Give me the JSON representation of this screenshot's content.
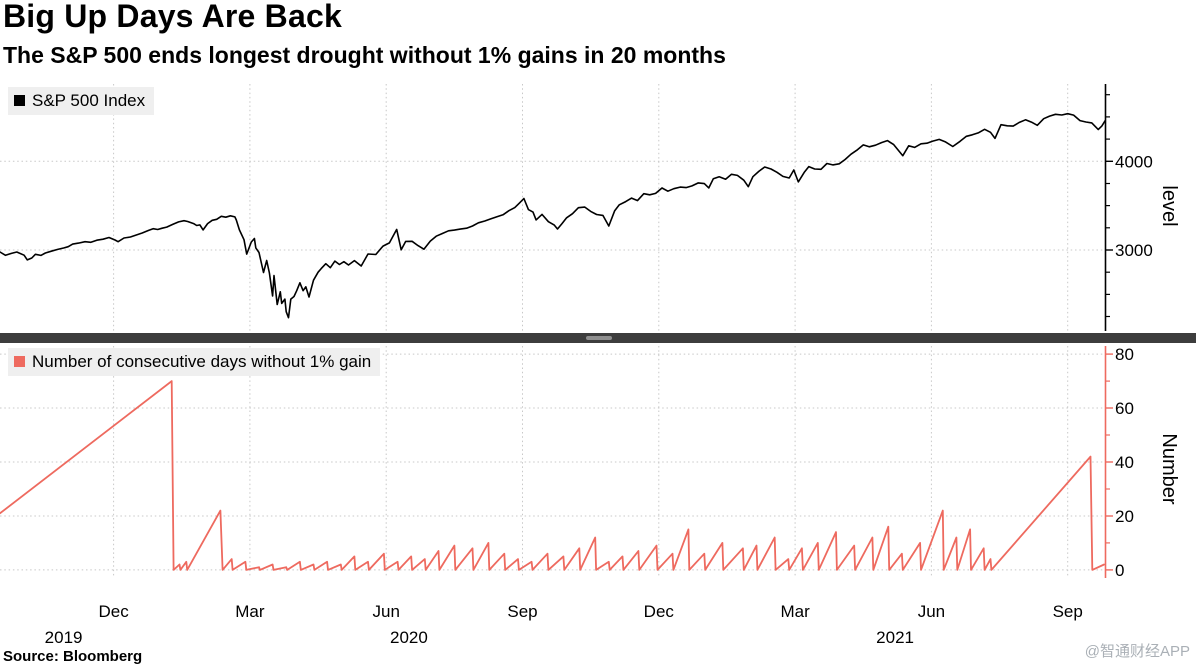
{
  "header": {
    "title": "Big Up Days Are Back",
    "subtitle": "The S&P 500 ends longest drought without 1% gains in 20 months"
  },
  "footer": {
    "source": "Source: Bloomberg",
    "watermark": "@智通财经APP"
  },
  "x_axis": {
    "unit": "months since 2019-10-01",
    "xlim": [
      -0.5,
      23.82
    ],
    "ticks": [
      {
        "x": 2,
        "label": "Dec"
      },
      {
        "x": 5,
        "label": "Mar"
      },
      {
        "x": 8,
        "label": "Jun"
      },
      {
        "x": 11,
        "label": "Sep"
      },
      {
        "x": 14,
        "label": "Dec"
      },
      {
        "x": 17,
        "label": "Mar"
      },
      {
        "x": 20,
        "label": "Jun"
      },
      {
        "x": 23,
        "label": "Sep"
      }
    ],
    "year_labels": [
      {
        "x": 0.9,
        "label": "2019"
      },
      {
        "x": 8.5,
        "label": "2020"
      },
      {
        "x": 19.2,
        "label": "2021"
      }
    ]
  },
  "chart_data": [
    {
      "type": "line",
      "name": "S&P 500 Index",
      "ylabel": "level",
      "ylim": [
        2087,
        4871
      ],
      "yticks": [
        {
          "v": 3000,
          "label": "3000"
        },
        {
          "v": 4000,
          "label": "4000"
        }
      ],
      "minor_yticks": [
        2250,
        2500,
        2750,
        3250,
        3500,
        3750,
        4250,
        4500,
        4750
      ],
      "color": "#000000",
      "axis_color": "#000000",
      "grid": true,
      "legend_position": "top-left",
      "points": [
        [
          -0.5,
          2977
        ],
        [
          -0.38,
          2940
        ],
        [
          -0.25,
          2962
        ],
        [
          -0.13,
          2977
        ],
        [
          0.03,
          2941
        ],
        [
          0.1,
          2888
        ],
        [
          0.2,
          2910
        ],
        [
          0.28,
          2952
        ],
        [
          0.4,
          2939
        ],
        [
          0.5,
          2966
        ],
        [
          0.63,
          2986
        ],
        [
          0.77,
          3007
        ],
        [
          0.9,
          3023
        ],
        [
          1.0,
          3037
        ],
        [
          1.1,
          3067
        ],
        [
          1.23,
          3078
        ],
        [
          1.37,
          3094
        ],
        [
          1.5,
          3087
        ],
        [
          1.63,
          3110
        ],
        [
          1.77,
          3122
        ],
        [
          1.9,
          3141
        ],
        [
          2.03,
          3113
        ],
        [
          2.1,
          3093
        ],
        [
          2.23,
          3135
        ],
        [
          2.37,
          3146
        ],
        [
          2.5,
          3169
        ],
        [
          2.63,
          3192
        ],
        [
          2.77,
          3221
        ],
        [
          2.87,
          3240
        ],
        [
          2.97,
          3231
        ],
        [
          3.07,
          3246
        ],
        [
          3.17,
          3258
        ],
        [
          3.3,
          3289
        ],
        [
          3.43,
          3317
        ],
        [
          3.55,
          3330
        ],
        [
          3.63,
          3321
        ],
        [
          3.77,
          3295
        ],
        [
          3.83,
          3276
        ],
        [
          3.9,
          3283
        ],
        [
          3.97,
          3226
        ],
        [
          4.07,
          3298
        ],
        [
          4.17,
          3335
        ],
        [
          4.27,
          3346
        ],
        [
          4.37,
          3380
        ],
        [
          4.47,
          3370
        ],
        [
          4.57,
          3386
        ],
        [
          4.67,
          3373
        ],
        [
          4.7,
          3338
        ],
        [
          4.77,
          3226
        ],
        [
          4.87,
          3116
        ],
        [
          4.93,
          2954
        ],
        [
          5.03,
          3090
        ],
        [
          5.1,
          3130
        ],
        [
          5.13,
          3024
        ],
        [
          5.2,
          2972
        ],
        [
          5.3,
          2746
        ],
        [
          5.37,
          2882
        ],
        [
          5.43,
          2741
        ],
        [
          5.5,
          2481
        ],
        [
          5.53,
          2711
        ],
        [
          5.6,
          2386
        ],
        [
          5.67,
          2529
        ],
        [
          5.7,
          2398
        ],
        [
          5.77,
          2447
        ],
        [
          5.8,
          2305
        ],
        [
          5.85,
          2237
        ],
        [
          5.9,
          2447
        ],
        [
          5.97,
          2476
        ],
        [
          6.03,
          2541
        ],
        [
          6.1,
          2630
        ],
        [
          6.17,
          2541
        ],
        [
          6.23,
          2585
        ],
        [
          6.3,
          2470
        ],
        [
          6.4,
          2660
        ],
        [
          6.5,
          2750
        ],
        [
          6.57,
          2790
        ],
        [
          6.67,
          2846
        ],
        [
          6.77,
          2800
        ],
        [
          6.87,
          2875
        ],
        [
          6.97,
          2837
        ],
        [
          7.07,
          2868
        ],
        [
          7.17,
          2831
        ],
        [
          7.3,
          2881
        ],
        [
          7.45,
          2820
        ],
        [
          7.6,
          2955
        ],
        [
          7.77,
          2949
        ],
        [
          7.93,
          3044
        ],
        [
          8.07,
          3080
        ],
        [
          8.23,
          3232
        ],
        [
          8.33,
          3002
        ],
        [
          8.43,
          3097
        ],
        [
          8.57,
          3098
        ],
        [
          8.7,
          3050
        ],
        [
          8.83,
          3009
        ],
        [
          8.97,
          3100
        ],
        [
          9.1,
          3156
        ],
        [
          9.23,
          3185
        ],
        [
          9.37,
          3216
        ],
        [
          9.5,
          3224
        ],
        [
          9.63,
          3235
        ],
        [
          9.77,
          3246
        ],
        [
          9.9,
          3271
        ],
        [
          10.03,
          3306
        ],
        [
          10.17,
          3327
        ],
        [
          10.3,
          3351
        ],
        [
          10.43,
          3373
        ],
        [
          10.57,
          3397
        ],
        [
          10.7,
          3443
        ],
        [
          10.83,
          3478
        ],
        [
          10.93,
          3527
        ],
        [
          11.03,
          3581
        ],
        [
          11.13,
          3455
        ],
        [
          11.23,
          3427
        ],
        [
          11.3,
          3339
        ],
        [
          11.43,
          3401
        ],
        [
          11.57,
          3319
        ],
        [
          11.7,
          3281
        ],
        [
          11.77,
          3237
        ],
        [
          11.87,
          3298
        ],
        [
          11.97,
          3363
        ],
        [
          12.1,
          3409
        ],
        [
          12.23,
          3477
        ],
        [
          12.37,
          3483
        ],
        [
          12.5,
          3435
        ],
        [
          12.63,
          3400
        ],
        [
          12.77,
          3390
        ],
        [
          12.9,
          3271
        ],
        [
          13.03,
          3443
        ],
        [
          13.13,
          3509
        ],
        [
          13.27,
          3545
        ],
        [
          13.4,
          3585
        ],
        [
          13.53,
          3557
        ],
        [
          13.67,
          3635
        ],
        [
          13.8,
          3622
        ],
        [
          13.93,
          3638
        ],
        [
          14.07,
          3699
        ],
        [
          14.2,
          3663
        ],
        [
          14.33,
          3691
        ],
        [
          14.47,
          3709
        ],
        [
          14.6,
          3703
        ],
        [
          14.73,
          3722
        ],
        [
          14.87,
          3756
        ],
        [
          15.0,
          3748
        ],
        [
          15.1,
          3700
        ],
        [
          15.2,
          3803
        ],
        [
          15.33,
          3825
        ],
        [
          15.47,
          3798
        ],
        [
          15.6,
          3853
        ],
        [
          15.73,
          3841
        ],
        [
          15.87,
          3787
        ],
        [
          15.97,
          3714
        ],
        [
          16.07,
          3826
        ],
        [
          16.2,
          3886
        ],
        [
          16.33,
          3935
        ],
        [
          16.47,
          3913
        ],
        [
          16.6,
          3876
        ],
        [
          16.73,
          3829
        ],
        [
          16.87,
          3811
        ],
        [
          16.97,
          3902
        ],
        [
          17.07,
          3768
        ],
        [
          17.2,
          3875
        ],
        [
          17.3,
          3940
        ],
        [
          17.43,
          3913
        ],
        [
          17.57,
          3910
        ],
        [
          17.7,
          3975
        ],
        [
          17.83,
          3959
        ],
        [
          17.97,
          3972
        ],
        [
          18.1,
          4020
        ],
        [
          18.23,
          4080
        ],
        [
          18.37,
          4129
        ],
        [
          18.5,
          4185
        ],
        [
          18.63,
          4163
        ],
        [
          18.77,
          4181
        ],
        [
          18.9,
          4211
        ],
        [
          19.03,
          4233
        ],
        [
          19.17,
          4188
        ],
        [
          19.37,
          4063
        ],
        [
          19.5,
          4174
        ],
        [
          19.63,
          4156
        ],
        [
          19.77,
          4197
        ],
        [
          19.9,
          4204
        ],
        [
          20.03,
          4227
        ],
        [
          20.17,
          4247
        ],
        [
          20.3,
          4221
        ],
        [
          20.47,
          4166
        ],
        [
          20.63,
          4225
        ],
        [
          20.77,
          4281
        ],
        [
          20.9,
          4298
        ],
        [
          21.03,
          4320
        ],
        [
          21.17,
          4360
        ],
        [
          21.3,
          4327
        ],
        [
          21.4,
          4258
        ],
        [
          21.53,
          4412
        ],
        [
          21.67,
          4400
        ],
        [
          21.8,
          4396
        ],
        [
          21.93,
          4437
        ],
        [
          22.07,
          4468
        ],
        [
          22.2,
          4442
        ],
        [
          22.33,
          4406
        ],
        [
          22.47,
          4480
        ],
        [
          22.6,
          4509
        ],
        [
          22.73,
          4529
        ],
        [
          22.87,
          4522
        ],
        [
          23.0,
          4536
        ],
        [
          23.13,
          4520
        ],
        [
          23.27,
          4458
        ],
        [
          23.4,
          4443
        ],
        [
          23.53,
          4433
        ],
        [
          23.67,
          4358
        ],
        [
          23.75,
          4396
        ],
        [
          23.82,
          4455
        ]
      ]
    },
    {
      "type": "line",
      "name": "Number of consecutive days without 1% gain",
      "ylabel": "Number",
      "ylim": [
        -3,
        83
      ],
      "yticks": [
        {
          "v": 0,
          "label": "0"
        },
        {
          "v": 20,
          "label": "20"
        },
        {
          "v": 40,
          "label": "40"
        },
        {
          "v": 60,
          "label": "60"
        },
        {
          "v": 80,
          "label": "80"
        }
      ],
      "minor_yticks": [
        10,
        30,
        50,
        70
      ],
      "color": "#ee6a5f",
      "axis_color": "#ee6a5f",
      "grid": true,
      "legend_position": "top-left",
      "points": [
        [
          -0.5,
          21
        ],
        [
          3.28,
          70
        ],
        [
          3.32,
          0
        ],
        [
          3.45,
          2
        ],
        [
          3.47,
          0
        ],
        [
          3.6,
          3
        ],
        [
          3.62,
          0
        ],
        [
          4.35,
          22
        ],
        [
          4.4,
          0
        ],
        [
          4.6,
          4
        ],
        [
          4.62,
          0
        ],
        [
          4.9,
          3
        ],
        [
          4.92,
          0
        ],
        [
          5.2,
          1
        ],
        [
          5.22,
          0
        ],
        [
          5.5,
          2
        ],
        [
          5.52,
          0
        ],
        [
          5.8,
          1
        ],
        [
          5.82,
          0
        ],
        [
          6.1,
          3
        ],
        [
          6.12,
          0
        ],
        [
          6.4,
          2
        ],
        [
          6.42,
          0
        ],
        [
          6.7,
          3
        ],
        [
          6.72,
          0
        ],
        [
          7.0,
          2
        ],
        [
          7.02,
          0
        ],
        [
          7.3,
          5
        ],
        [
          7.32,
          0
        ],
        [
          7.6,
          3
        ],
        [
          7.62,
          0
        ],
        [
          7.95,
          6
        ],
        [
          7.97,
          0
        ],
        [
          8.25,
          3
        ],
        [
          8.27,
          0
        ],
        [
          8.55,
          5
        ],
        [
          8.57,
          0
        ],
        [
          8.85,
          4
        ],
        [
          8.87,
          0
        ],
        [
          9.15,
          7
        ],
        [
          9.17,
          0
        ],
        [
          9.5,
          9
        ],
        [
          9.52,
          0
        ],
        [
          9.9,
          8
        ],
        [
          9.92,
          0
        ],
        [
          10.25,
          10
        ],
        [
          10.27,
          0
        ],
        [
          10.6,
          6
        ],
        [
          10.62,
          0
        ],
        [
          10.9,
          4
        ],
        [
          10.92,
          0
        ],
        [
          11.2,
          3
        ],
        [
          11.22,
          0
        ],
        [
          11.55,
          6
        ],
        [
          11.57,
          0
        ],
        [
          11.9,
          5
        ],
        [
          11.92,
          0
        ],
        [
          12.25,
          8
        ],
        [
          12.27,
          0
        ],
        [
          12.6,
          12
        ],
        [
          12.62,
          0
        ],
        [
          12.9,
          3
        ],
        [
          12.92,
          0
        ],
        [
          13.2,
          5
        ],
        [
          13.22,
          0
        ],
        [
          13.55,
          7
        ],
        [
          13.57,
          0
        ],
        [
          13.95,
          9
        ],
        [
          13.97,
          0
        ],
        [
          14.3,
          6
        ],
        [
          14.32,
          0
        ],
        [
          14.65,
          15
        ],
        [
          14.67,
          0
        ],
        [
          15.0,
          6
        ],
        [
          15.02,
          0
        ],
        [
          15.4,
          10
        ],
        [
          15.42,
          0
        ],
        [
          15.85,
          8
        ],
        [
          15.87,
          0
        ],
        [
          16.15,
          9
        ],
        [
          16.17,
          0
        ],
        [
          16.55,
          12
        ],
        [
          16.57,
          0
        ],
        [
          16.85,
          4
        ],
        [
          16.87,
          0
        ],
        [
          17.15,
          8
        ],
        [
          17.17,
          0
        ],
        [
          17.5,
          10
        ],
        [
          17.52,
          0
        ],
        [
          17.9,
          14
        ],
        [
          17.92,
          0
        ],
        [
          18.3,
          9
        ],
        [
          18.32,
          0
        ],
        [
          18.7,
          12
        ],
        [
          18.72,
          0
        ],
        [
          19.05,
          16
        ],
        [
          19.07,
          0
        ],
        [
          19.35,
          6
        ],
        [
          19.37,
          0
        ],
        [
          19.75,
          10
        ],
        [
          19.77,
          0
        ],
        [
          20.25,
          22
        ],
        [
          20.27,
          0
        ],
        [
          20.55,
          12
        ],
        [
          20.57,
          0
        ],
        [
          20.85,
          15
        ],
        [
          20.87,
          0
        ],
        [
          21.15,
          8
        ],
        [
          21.17,
          0
        ],
        [
          21.3,
          4
        ],
        [
          21.32,
          0
        ],
        [
          23.5,
          42
        ],
        [
          23.54,
          0
        ],
        [
          23.8,
          2
        ]
      ]
    }
  ]
}
